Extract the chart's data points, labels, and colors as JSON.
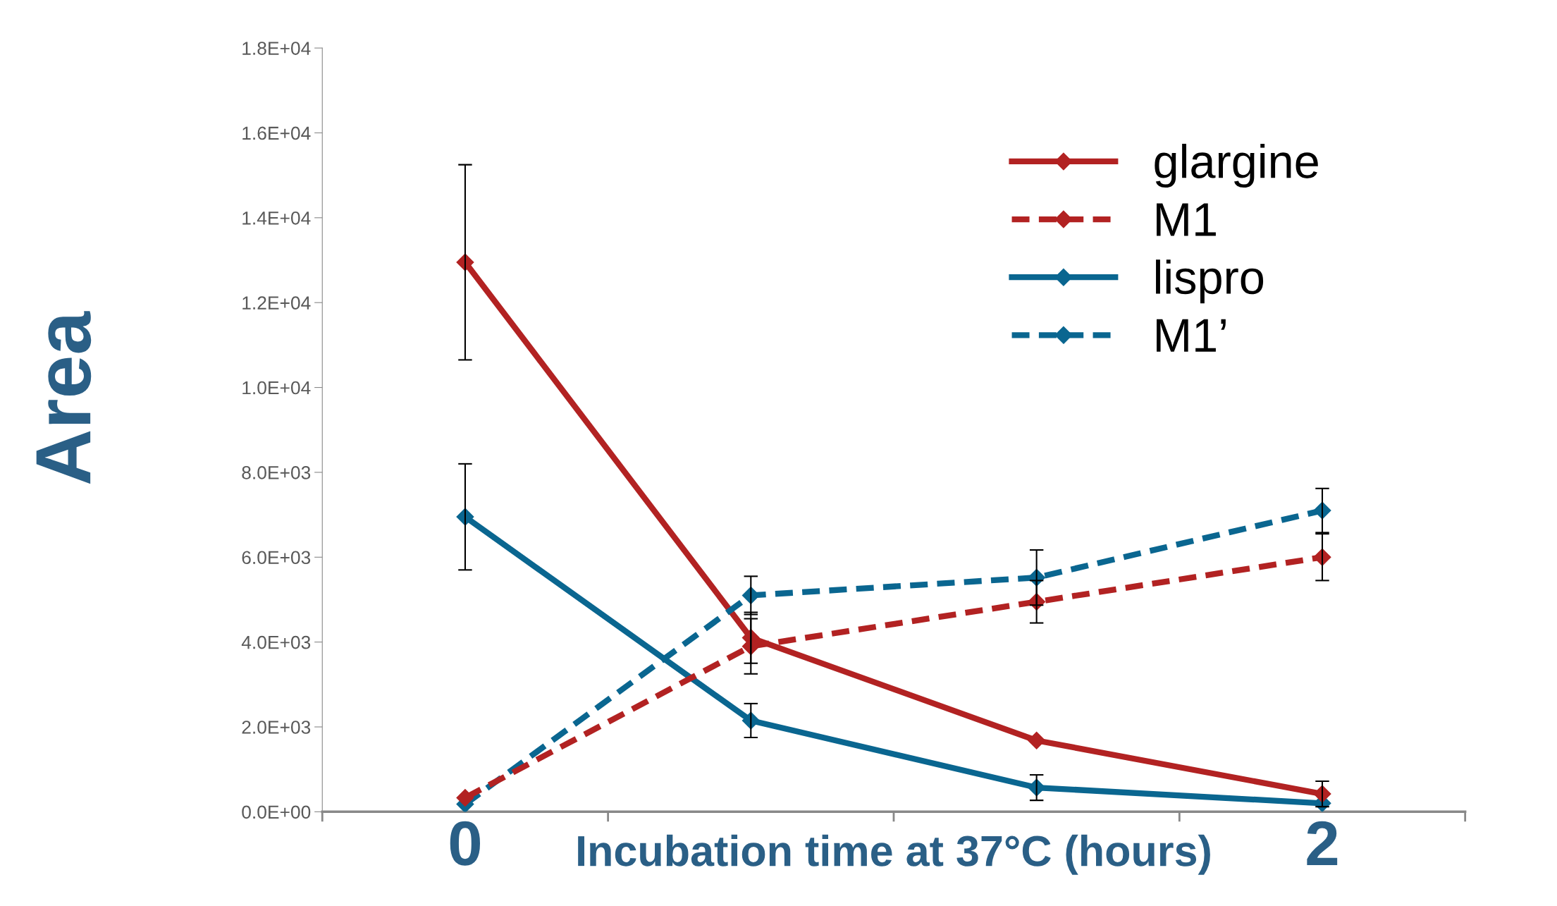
{
  "chart_data": {
    "type": "line",
    "xlabel": "Incubation time at 37°C (hours)",
    "ylabel": "Area",
    "categories": [
      "0",
      null,
      null,
      "2"
    ],
    "ylim": [
      0,
      18000
    ],
    "yticks": [
      {
        "value": 0,
        "label": "0.0E+00"
      },
      {
        "value": 2000,
        "label": "2.0E+03"
      },
      {
        "value": 4000,
        "label": "4.0E+03"
      },
      {
        "value": 6000,
        "label": "6.0E+03"
      },
      {
        "value": 8000,
        "label": "8.0E+03"
      },
      {
        "value": 10000,
        "label": "1.0E+04"
      },
      {
        "value": 12000,
        "label": "1.2E+04"
      },
      {
        "value": 14000,
        "label": "1.4E+04"
      },
      {
        "value": 16000,
        "label": "1.6E+04"
      },
      {
        "value": 18000,
        "label": "1.8E+04"
      }
    ],
    "grid": false,
    "legend": "top right",
    "marker": "diamond",
    "series": [
      {
        "name": "glargine",
        "color": "#b22222",
        "line_style": "solid",
        "values": [
          12950,
          4100,
          1680,
          420
        ],
        "errors": [
          2300,
          600,
          null,
          300
        ]
      },
      {
        "name": "M1",
        "color": "#b22222",
        "line_style": "dashed",
        "values": [
          330,
          3900,
          4950,
          6000
        ],
        "errors": [
          null,
          650,
          500,
          550
        ]
      },
      {
        "name": "lispro",
        "color": "#0a6690",
        "line_style": "solid",
        "values": [
          6950,
          2150,
          570,
          200
        ],
        "errors": [
          1250,
          400,
          300,
          null
        ]
      },
      {
        "name": "M1’",
        "color": "#0a6690",
        "line_style": "dashed",
        "values": [
          180,
          5100,
          5520,
          7100
        ],
        "errors": [
          null,
          450,
          650,
          520
        ]
      }
    ]
  }
}
